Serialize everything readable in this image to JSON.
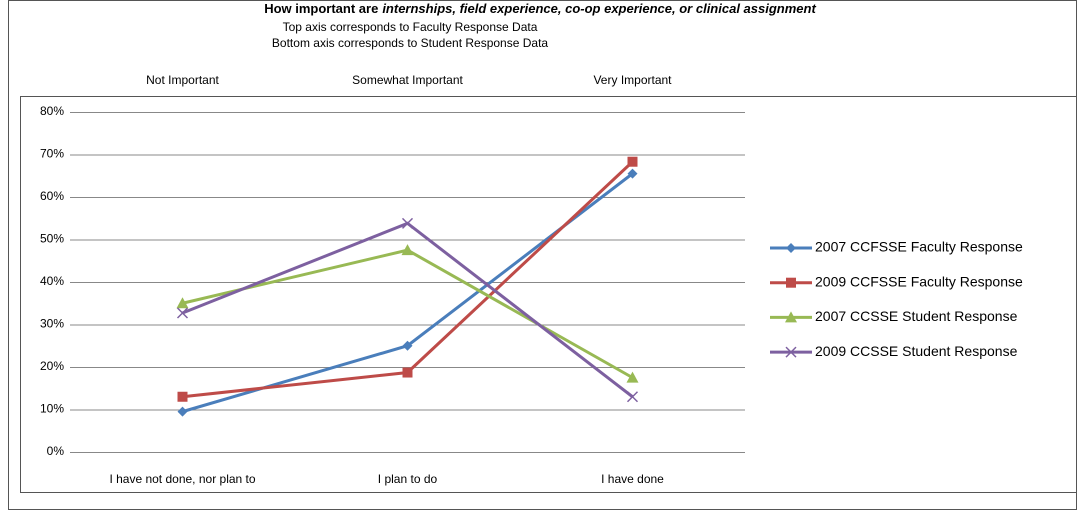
{
  "chart_data": {
    "type": "line",
    "title": [
      "How important are",
      "internships, field experience, co-op experience, or clinical assignment"
    ],
    "subtitles": [
      "Top axis corresponds to Faculty Response Data",
      "Bottom axis corresponds to Student Response Data"
    ],
    "top_categories": [
      "Not Important",
      "Somewhat Important",
      "Very Important"
    ],
    "categories": [
      "I have not done, nor plan to",
      "I plan to do",
      "I have done"
    ],
    "series": [
      {
        "name": "2007 CCFSSE Faculty Response",
        "color": "#4a7ebb",
        "marker": "diamond",
        "values": [
          9.5,
          25,
          65.5
        ]
      },
      {
        "name": "2009 CCFSSE Faculty Response",
        "color": "#be4b48",
        "marker": "square",
        "values": [
          13,
          18.7,
          68.3
        ]
      },
      {
        "name": "2007 CCSSE Student Response",
        "color": "#98b954",
        "marker": "triangle",
        "values": [
          35,
          47.5,
          17.5
        ]
      },
      {
        "name": "2009 CCSSE Student Response",
        "color": "#7d60a0",
        "marker": "x",
        "values": [
          32.7,
          53.8,
          13
        ]
      }
    ],
    "ylim": [
      0,
      80
    ],
    "yticks": [
      {
        "value": 0,
        "label": "0%"
      },
      {
        "value": 10,
        "label": "10%"
      },
      {
        "value": 20,
        "label": "20%"
      },
      {
        "value": 30,
        "label": "30%"
      },
      {
        "value": 40,
        "label": "40%"
      },
      {
        "value": 50,
        "label": "50%"
      },
      {
        "value": 60,
        "label": "60%"
      },
      {
        "value": 70,
        "label": "70%"
      },
      {
        "value": 80,
        "label": "80%"
      }
    ],
    "grid": true,
    "legend": "right"
  }
}
